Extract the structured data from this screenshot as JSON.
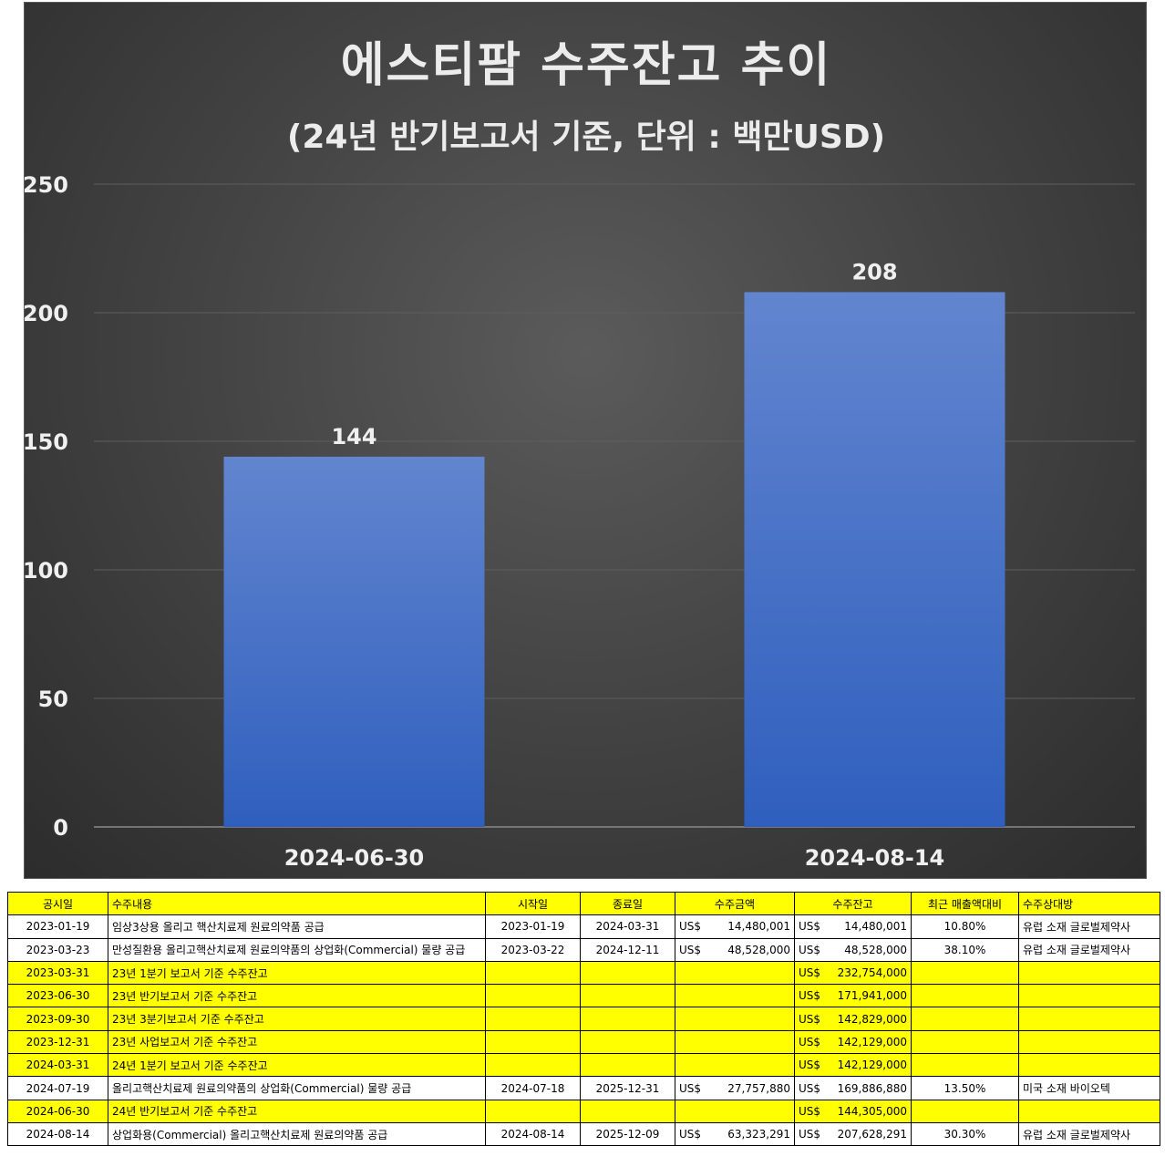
{
  "chart_data": {
    "type": "bar",
    "title": "에스티팜 수주잔고 추이",
    "subtitle": "(24년 반기보고서 기준, 단위 : 백만USD)",
    "categories": [
      "2024-06-30",
      "2024-08-14"
    ],
    "values": [
      144,
      208
    ],
    "value_labels": [
      "144",
      "208"
    ],
    "ylim": [
      0,
      250
    ],
    "yticks": [
      0,
      50,
      100,
      150,
      200,
      250
    ],
    "ytick_labels": [
      "0",
      "50",
      "100",
      "150",
      "200",
      "250"
    ],
    "grid": true,
    "bar_color": "#4472c4",
    "background": "#3a3a3a"
  },
  "table": {
    "headers": [
      "공시일",
      "수주내용",
      "시작일",
      "종료일",
      "수주금액",
      "수주잔고",
      "최근 매출액대비",
      "수주상대방"
    ],
    "currency": "US$",
    "rows": [
      {
        "highlight": false,
        "date": "2023-01-19",
        "content": "임상3상용 올리고 핵산치료제 원료의약품 공급",
        "start": "2023-01-19",
        "end": "2024-03-31",
        "amount_cur": "US$",
        "amount": "14,480,001",
        "backlog_cur": "US$",
        "backlog": "14,480,001",
        "ratio": "10.80%",
        "party": "유럽 소재 글로벌제약사"
      },
      {
        "highlight": false,
        "date": "2023-03-23",
        "content": "만성질환용 올리고핵산치료제 원료의약품의 상업화(Commercial) 물량 공급",
        "start": "2023-03-22",
        "end": "2024-12-11",
        "amount_cur": "US$",
        "amount": "48,528,000",
        "backlog_cur": "US$",
        "backlog": "48,528,000",
        "ratio": "38.10%",
        "party": "유럽 소재 글로벌제약사"
      },
      {
        "highlight": true,
        "date": "2023-03-31",
        "content": "23년 1분기 보고서 기준 수주잔고",
        "start": "",
        "end": "",
        "amount_cur": "",
        "amount": "",
        "backlog_cur": "US$",
        "backlog": "232,754,000",
        "ratio": "",
        "party": ""
      },
      {
        "highlight": true,
        "date": "2023-06-30",
        "content": "23년 반기보고서 기준 수주잔고",
        "start": "",
        "end": "",
        "amount_cur": "",
        "amount": "",
        "backlog_cur": "US$",
        "backlog": "171,941,000",
        "ratio": "",
        "party": ""
      },
      {
        "highlight": true,
        "date": "2023-09-30",
        "content": "23년 3분기보고서 기준 수주잔고",
        "start": "",
        "end": "",
        "amount_cur": "",
        "amount": "",
        "backlog_cur": "US$",
        "backlog": "142,829,000",
        "ratio": "",
        "party": ""
      },
      {
        "highlight": true,
        "date": "2023-12-31",
        "content": "23년 사업보고서 기준 수주잔고",
        "start": "",
        "end": "",
        "amount_cur": "",
        "amount": "",
        "backlog_cur": "US$",
        "backlog": "142,129,000",
        "ratio": "",
        "party": ""
      },
      {
        "highlight": true,
        "date": "2024-03-31",
        "content": "24년 1분기 보고서 기준 수주잔고",
        "start": "",
        "end": "",
        "amount_cur": "",
        "amount": "",
        "backlog_cur": "US$",
        "backlog": "142,129,000",
        "ratio": "",
        "party": ""
      },
      {
        "highlight": false,
        "date": "2024-07-19",
        "content": "올리고핵산치료제 원료의약품의 상업화(Commercial) 물량 공급",
        "start": "2024-07-18",
        "end": "2025-12-31",
        "amount_cur": "US$",
        "amount": "27,757,880",
        "backlog_cur": "US$",
        "backlog": "169,886,880",
        "ratio": "13.50%",
        "party": "미국 소재 바이오텍"
      },
      {
        "highlight": true,
        "date": "2024-06-30",
        "content": "24년 반기보고서 기준 수주잔고",
        "start": "",
        "end": "",
        "amount_cur": "",
        "amount": "",
        "backlog_cur": "US$",
        "backlog": "144,305,000",
        "ratio": "",
        "party": ""
      },
      {
        "highlight": false,
        "date": "2024-08-14",
        "content": "상업화용(Commercial) 올리고핵산치료제 원료의약품 공급",
        "start": "2024-08-14",
        "end": "2025-12-09",
        "amount_cur": "US$",
        "amount": "63,323,291",
        "backlog_cur": "US$",
        "backlog": "207,628,291",
        "ratio": "30.30%",
        "party": "유럽 소재 글로벌제약사"
      }
    ]
  }
}
